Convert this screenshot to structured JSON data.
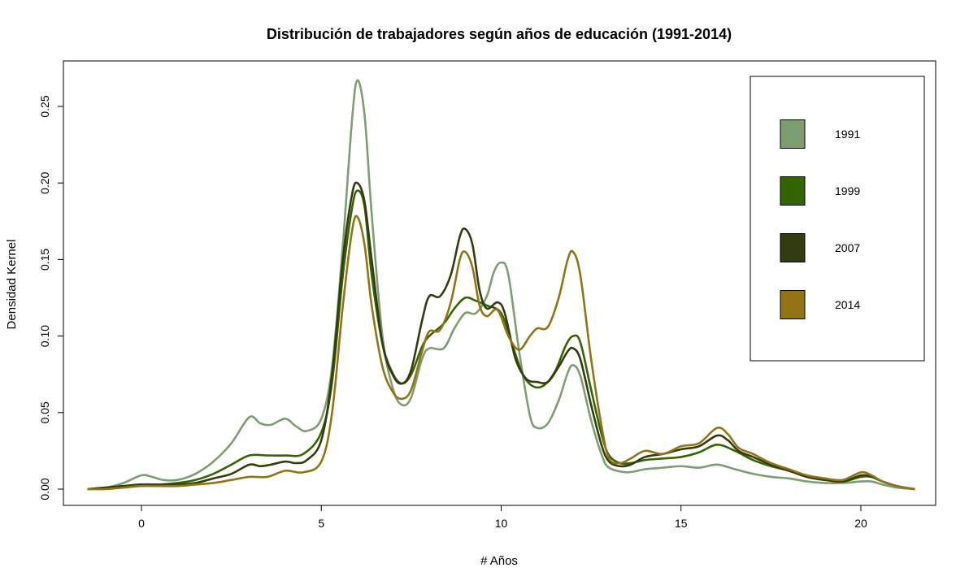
{
  "chart_data": {
    "type": "line",
    "title": "Distribución de trabajadores según años de educación (1991-2014)",
    "xlabel": "# Años",
    "ylabel": "Densidad Kernel",
    "xlim": [
      -1.5,
      21.5
    ],
    "ylim": [
      0.0,
      0.27
    ],
    "x_ticks": [
      0,
      5,
      10,
      15,
      20
    ],
    "y_ticks": [
      0.0,
      0.05,
      0.1,
      0.15,
      0.2,
      0.25
    ],
    "x_tick_labels": [
      "0",
      "5",
      "10",
      "15",
      "20"
    ],
    "y_tick_labels": [
      "0.00",
      "0.05",
      "0.10",
      "0.15",
      "0.20",
      "0.25"
    ],
    "grid": false,
    "legend_position": "top-right",
    "series": [
      {
        "name": "1991",
        "color": "#7c9e71",
        "points": [
          [
            -1.5,
            0.0
          ],
          [
            -1.0,
            0.001
          ],
          [
            -0.5,
            0.004
          ],
          [
            0.0,
            0.009
          ],
          [
            0.3,
            0.008
          ],
          [
            0.6,
            0.006
          ],
          [
            1.0,
            0.006
          ],
          [
            1.5,
            0.01
          ],
          [
            2.0,
            0.018
          ],
          [
            2.5,
            0.03
          ],
          [
            3.0,
            0.047
          ],
          [
            3.3,
            0.043
          ],
          [
            3.6,
            0.042
          ],
          [
            4.0,
            0.046
          ],
          [
            4.3,
            0.041
          ],
          [
            4.6,
            0.038
          ],
          [
            5.0,
            0.046
          ],
          [
            5.3,
            0.08
          ],
          [
            5.6,
            0.16
          ],
          [
            5.85,
            0.24
          ],
          [
            6.0,
            0.267
          ],
          [
            6.2,
            0.245
          ],
          [
            6.4,
            0.18
          ],
          [
            6.7,
            0.1
          ],
          [
            7.0,
            0.065
          ],
          [
            7.25,
            0.055
          ],
          [
            7.5,
            0.06
          ],
          [
            7.8,
            0.085
          ],
          [
            8.0,
            0.092
          ],
          [
            8.4,
            0.092
          ],
          [
            8.7,
            0.105
          ],
          [
            9.0,
            0.115
          ],
          [
            9.3,
            0.115
          ],
          [
            9.6,
            0.126
          ],
          [
            9.8,
            0.142
          ],
          [
            10.0,
            0.148
          ],
          [
            10.2,
            0.14
          ],
          [
            10.5,
            0.09
          ],
          [
            10.8,
            0.048
          ],
          [
            11.0,
            0.04
          ],
          [
            11.3,
            0.043
          ],
          [
            11.6,
            0.058
          ],
          [
            11.85,
            0.076
          ],
          [
            12.0,
            0.081
          ],
          [
            12.2,
            0.074
          ],
          [
            12.5,
            0.045
          ],
          [
            12.8,
            0.022
          ],
          [
            13.0,
            0.014
          ],
          [
            13.5,
            0.011
          ],
          [
            14.0,
            0.013
          ],
          [
            14.5,
            0.014
          ],
          [
            15.0,
            0.015
          ],
          [
            15.5,
            0.014
          ],
          [
            16.0,
            0.016
          ],
          [
            16.5,
            0.013
          ],
          [
            17.0,
            0.01
          ],
          [
            17.5,
            0.008
          ],
          [
            18.0,
            0.007
          ],
          [
            18.5,
            0.005
          ],
          [
            19.0,
            0.004
          ],
          [
            19.5,
            0.004
          ],
          [
            20.0,
            0.005
          ],
          [
            20.3,
            0.005
          ],
          [
            20.6,
            0.003
          ],
          [
            21.0,
            0.001
          ],
          [
            21.5,
            0.0
          ]
        ]
      },
      {
        "name": "1999",
        "color": "#336600",
        "points": [
          [
            -1.5,
            0.0
          ],
          [
            -1.0,
            0.001
          ],
          [
            -0.5,
            0.002
          ],
          [
            0.0,
            0.003
          ],
          [
            0.5,
            0.003
          ],
          [
            1.0,
            0.004
          ],
          [
            1.5,
            0.006
          ],
          [
            2.0,
            0.01
          ],
          [
            2.5,
            0.016
          ],
          [
            3.0,
            0.022
          ],
          [
            3.5,
            0.022
          ],
          [
            4.0,
            0.022
          ],
          [
            4.5,
            0.023
          ],
          [
            5.0,
            0.037
          ],
          [
            5.3,
            0.07
          ],
          [
            5.6,
            0.14
          ],
          [
            5.85,
            0.183
          ],
          [
            6.0,
            0.195
          ],
          [
            6.2,
            0.185
          ],
          [
            6.4,
            0.14
          ],
          [
            6.7,
            0.095
          ],
          [
            7.0,
            0.075
          ],
          [
            7.25,
            0.069
          ],
          [
            7.5,
            0.075
          ],
          [
            7.8,
            0.093
          ],
          [
            8.0,
            0.1
          ],
          [
            8.4,
            0.108
          ],
          [
            8.7,
            0.118
          ],
          [
            9.0,
            0.125
          ],
          [
            9.3,
            0.123
          ],
          [
            9.6,
            0.12
          ],
          [
            10.0,
            0.115
          ],
          [
            10.3,
            0.095
          ],
          [
            10.6,
            0.075
          ],
          [
            10.9,
            0.067
          ],
          [
            11.2,
            0.068
          ],
          [
            11.5,
            0.077
          ],
          [
            11.8,
            0.094
          ],
          [
            12.0,
            0.1
          ],
          [
            12.2,
            0.096
          ],
          [
            12.5,
            0.065
          ],
          [
            12.8,
            0.035
          ],
          [
            13.0,
            0.022
          ],
          [
            13.3,
            0.017
          ],
          [
            13.6,
            0.017
          ],
          [
            14.0,
            0.019
          ],
          [
            14.5,
            0.02
          ],
          [
            15.0,
            0.021
          ],
          [
            15.5,
            0.024
          ],
          [
            16.0,
            0.029
          ],
          [
            16.5,
            0.025
          ],
          [
            17.0,
            0.019
          ],
          [
            17.5,
            0.015
          ],
          [
            18.0,
            0.012
          ],
          [
            18.5,
            0.008
          ],
          [
            19.0,
            0.006
          ],
          [
            19.5,
            0.005
          ],
          [
            20.0,
            0.008
          ],
          [
            20.3,
            0.008
          ],
          [
            20.6,
            0.005
          ],
          [
            21.0,
            0.002
          ],
          [
            21.5,
            0.0
          ]
        ]
      },
      {
        "name": "2007",
        "color": "#333c0e",
        "points": [
          [
            -1.5,
            0.0
          ],
          [
            -1.0,
            0.001
          ],
          [
            -0.5,
            0.002
          ],
          [
            0.0,
            0.003
          ],
          [
            0.5,
            0.003
          ],
          [
            1.0,
            0.003
          ],
          [
            1.5,
            0.004
          ],
          [
            2.0,
            0.007
          ],
          [
            2.5,
            0.01
          ],
          [
            3.0,
            0.016
          ],
          [
            3.3,
            0.015
          ],
          [
            3.6,
            0.016
          ],
          [
            4.0,
            0.018
          ],
          [
            4.3,
            0.017
          ],
          [
            4.6,
            0.019
          ],
          [
            5.0,
            0.032
          ],
          [
            5.3,
            0.075
          ],
          [
            5.6,
            0.15
          ],
          [
            5.85,
            0.192
          ],
          [
            6.0,
            0.2
          ],
          [
            6.2,
            0.188
          ],
          [
            6.4,
            0.15
          ],
          [
            6.7,
            0.095
          ],
          [
            7.0,
            0.074
          ],
          [
            7.25,
            0.069
          ],
          [
            7.5,
            0.078
          ],
          [
            7.8,
            0.11
          ],
          [
            8.0,
            0.126
          ],
          [
            8.3,
            0.126
          ],
          [
            8.6,
            0.14
          ],
          [
            8.85,
            0.165
          ],
          [
            9.0,
            0.17
          ],
          [
            9.2,
            0.16
          ],
          [
            9.4,
            0.13
          ],
          [
            9.6,
            0.118
          ],
          [
            9.9,
            0.122
          ],
          [
            10.1,
            0.115
          ],
          [
            10.4,
            0.085
          ],
          [
            10.7,
            0.072
          ],
          [
            11.0,
            0.07
          ],
          [
            11.3,
            0.07
          ],
          [
            11.6,
            0.08
          ],
          [
            11.85,
            0.09
          ],
          [
            12.0,
            0.092
          ],
          [
            12.2,
            0.085
          ],
          [
            12.5,
            0.055
          ],
          [
            12.8,
            0.028
          ],
          [
            13.0,
            0.018
          ],
          [
            13.3,
            0.015
          ],
          [
            13.6,
            0.016
          ],
          [
            14.0,
            0.021
          ],
          [
            14.5,
            0.023
          ],
          [
            15.0,
            0.026
          ],
          [
            15.5,
            0.028
          ],
          [
            16.0,
            0.035
          ],
          [
            16.3,
            0.032
          ],
          [
            16.6,
            0.025
          ],
          [
            17.0,
            0.021
          ],
          [
            17.5,
            0.016
          ],
          [
            18.0,
            0.012
          ],
          [
            18.5,
            0.008
          ],
          [
            19.0,
            0.006
          ],
          [
            19.5,
            0.005
          ],
          [
            20.0,
            0.009
          ],
          [
            20.3,
            0.008
          ],
          [
            20.6,
            0.005
          ],
          [
            21.0,
            0.002
          ],
          [
            21.5,
            0.0
          ]
        ]
      },
      {
        "name": "2014",
        "color": "#937414",
        "points": [
          [
            -1.5,
            0.0
          ],
          [
            -1.0,
            0.0
          ],
          [
            -0.5,
            0.001
          ],
          [
            0.0,
            0.002
          ],
          [
            0.5,
            0.002
          ],
          [
            1.0,
            0.002
          ],
          [
            1.5,
            0.003
          ],
          [
            2.0,
            0.004
          ],
          [
            2.5,
            0.006
          ],
          [
            3.0,
            0.008
          ],
          [
            3.5,
            0.008
          ],
          [
            4.0,
            0.012
          ],
          [
            4.5,
            0.011
          ],
          [
            5.0,
            0.018
          ],
          [
            5.3,
            0.05
          ],
          [
            5.6,
            0.12
          ],
          [
            5.85,
            0.168
          ],
          [
            6.0,
            0.178
          ],
          [
            6.2,
            0.16
          ],
          [
            6.4,
            0.12
          ],
          [
            6.7,
            0.08
          ],
          [
            7.0,
            0.063
          ],
          [
            7.25,
            0.059
          ],
          [
            7.5,
            0.065
          ],
          [
            7.8,
            0.09
          ],
          [
            8.0,
            0.103
          ],
          [
            8.3,
            0.104
          ],
          [
            8.6,
            0.122
          ],
          [
            8.85,
            0.15
          ],
          [
            9.0,
            0.155
          ],
          [
            9.2,
            0.145
          ],
          [
            9.4,
            0.12
          ],
          [
            9.6,
            0.113
          ],
          [
            9.9,
            0.117
          ],
          [
            10.2,
            0.1
          ],
          [
            10.5,
            0.091
          ],
          [
            10.8,
            0.1
          ],
          [
            11.0,
            0.105
          ],
          [
            11.3,
            0.106
          ],
          [
            11.6,
            0.125
          ],
          [
            11.85,
            0.15
          ],
          [
            12.0,
            0.155
          ],
          [
            12.2,
            0.14
          ],
          [
            12.5,
            0.085
          ],
          [
            12.8,
            0.04
          ],
          [
            13.0,
            0.02
          ],
          [
            13.3,
            0.017
          ],
          [
            13.6,
            0.02
          ],
          [
            14.0,
            0.025
          ],
          [
            14.5,
            0.023
          ],
          [
            15.0,
            0.028
          ],
          [
            15.5,
            0.03
          ],
          [
            16.0,
            0.04
          ],
          [
            16.3,
            0.036
          ],
          [
            16.6,
            0.027
          ],
          [
            17.0,
            0.023
          ],
          [
            17.5,
            0.017
          ],
          [
            18.0,
            0.013
          ],
          [
            18.5,
            0.009
          ],
          [
            19.0,
            0.007
          ],
          [
            19.5,
            0.006
          ],
          [
            20.0,
            0.011
          ],
          [
            20.3,
            0.009
          ],
          [
            20.6,
            0.005
          ],
          [
            21.0,
            0.002
          ],
          [
            21.5,
            0.0
          ]
        ]
      }
    ]
  }
}
